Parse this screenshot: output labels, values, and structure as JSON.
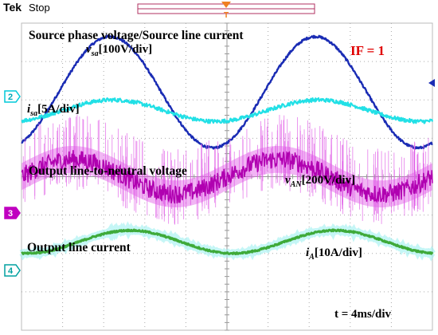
{
  "header": {
    "brand": "Tek",
    "status": "Stop",
    "trigger_marker": "T"
  },
  "chart_data": {
    "type": "line",
    "x_unit": "ms",
    "xlim": [
      0,
      40
    ],
    "divisions": {
      "x": 10,
      "y": 8
    },
    "grid": true,
    "title": "Source phase voltage/Source line current",
    "annotation_if": "IF = 1",
    "timebase": "t = 4ms/div",
    "channels": [
      {
        "id": "2",
        "color": "#00c8d8"
      },
      {
        "id": "3",
        "color": "#c000c0"
      },
      {
        "id": "4",
        "color": "#00a0a0"
      }
    ],
    "series": [
      {
        "name": "v_sa",
        "label_main": "v",
        "label_sub": "sa",
        "label_scale": "[100V/div]",
        "color": "#1a2cb4",
        "scale": "100V/div",
        "waveform": "sine",
        "frequency_hz": 50,
        "amplitude_div": 1.45,
        "offset_div": 2.2,
        "phase_deg": -65,
        "noise_div": 0.03
      },
      {
        "name": "i_sa",
        "label_main": "i",
        "label_sub": "sa",
        "label_scale": "[5A/div]",
        "color": "#22e0e6",
        "scale": "5A/div",
        "waveform": "sine",
        "frequency_hz": 50,
        "amplitude_div": 0.28,
        "offset_div": 1.72,
        "phase_deg": -70,
        "noise_div": 0.05
      },
      {
        "name": "v_AN",
        "label_main": "v",
        "label_sub": "AN",
        "label_scale": "[200V/div]",
        "color": "#e05ce6",
        "scale": "200V/div",
        "waveform": "pwm",
        "frequency_hz": 50,
        "amplitude_div": 0.45,
        "offset_div": 0.0,
        "phase_deg": 0,
        "noise_div": 0.25
      },
      {
        "name": "i_A",
        "label_main": "i",
        "label_sub": "A",
        "label_scale": "[10A/div]",
        "color": "#3faa3a",
        "scale": "10A/div",
        "waveform": "sine",
        "frequency_hz": 50,
        "amplitude_div": 0.3,
        "offset_div": -1.7,
        "phase_deg": -100,
        "noise_div": 0.02
      }
    ],
    "section_labels": {
      "output_voltage": "Output line-to-neutral voltage",
      "output_current": "Output line current"
    }
  }
}
